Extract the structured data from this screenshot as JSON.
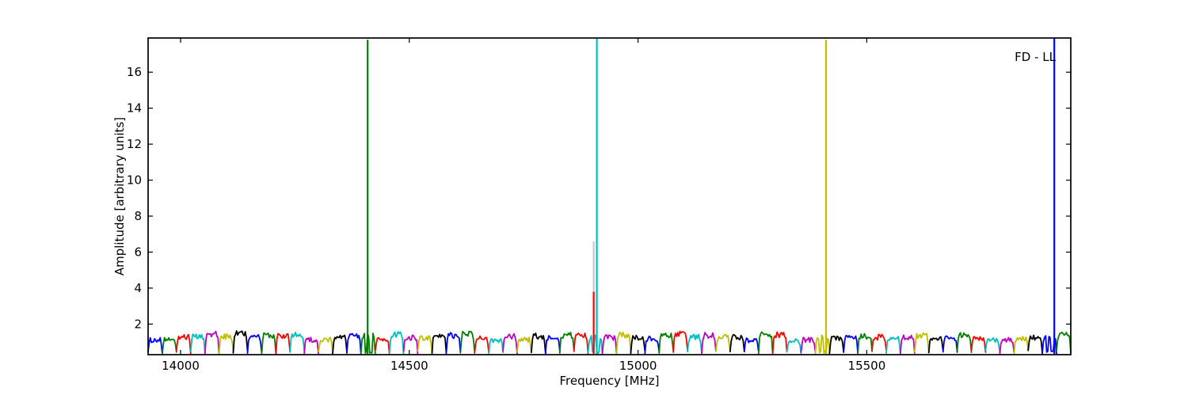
{
  "annotation": {
    "text": "FD - LL"
  },
  "axes": {
    "xlabel": "Frequency [MHz]",
    "ylabel": "Amplitude [arbitrary units]",
    "xlim": [
      13929,
      15946
    ],
    "ylim": [
      0.3,
      17.9
    ],
    "xticks": [
      14000,
      14500,
      15000,
      15500
    ],
    "yticks": [
      2,
      4,
      6,
      8,
      10,
      12,
      14,
      16
    ],
    "spine_color": "#000000",
    "tick_color": "#000000",
    "background": "#ffffff"
  },
  "chart_data": {
    "type": "line",
    "title": "FD - LL",
    "xlabel": "Frequency [MHz]",
    "ylabel": "Amplitude [arbitrary units]",
    "xlim": [
      13929,
      15946
    ],
    "ylim": [
      0.3,
      17.9
    ],
    "grid": false,
    "legend": "none",
    "baseline_subbands": {
      "count": 65,
      "start_mhz": 13929,
      "width_mhz": 31.03,
      "plateau_amplitude_range": [
        1.1,
        1.5
      ],
      "edge_amplitude_range": [
        0.3,
        0.55
      ],
      "color_cycle": [
        "#0000ff",
        "#008000",
        "#ff0000",
        "#00bfbf",
        "#bf00bf",
        "#bfbf00",
        "#000000"
      ],
      "notched_subband_indices": [
        15,
        31,
        47,
        63
      ],
      "notch_dip_amplitude": 0.4
    },
    "spikes": [
      {
        "freq_mhz": 14409,
        "amplitude": 17.8,
        "color": "#008000",
        "clipped": false
      },
      {
        "freq_mhz": 14903,
        "amplitude": 6.6,
        "color": "#c8c8c8",
        "clipped": false
      },
      {
        "freq_mhz": 14903,
        "amplitude": 3.8,
        "color": "#ff0000",
        "clipped": false
      },
      {
        "freq_mhz": 14910,
        "amplitude": 17.9,
        "color": "#00bfbf",
        "clipped": true
      },
      {
        "freq_mhz": 15411,
        "amplitude": 17.8,
        "color": "#bfbf00",
        "clipped": false
      },
      {
        "freq_mhz": 15910,
        "amplitude": 17.9,
        "color": "#0000ff",
        "clipped": true
      }
    ],
    "seed": 1234
  }
}
